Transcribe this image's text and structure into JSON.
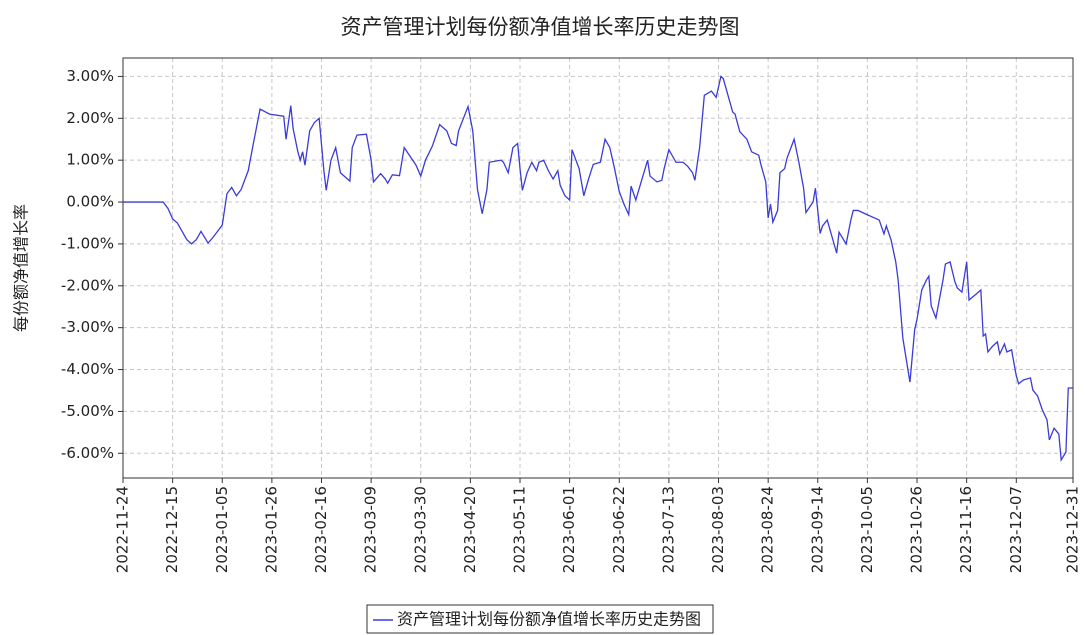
{
  "chart_data": {
    "type": "line",
    "title": "资产管理计划每份额净值增长率历史走势图",
    "y_label": "每份额净值增长率",
    "xlim": [
      "2022-11-24",
      "2023-12-31"
    ],
    "xticks": [
      "2022-11-24",
      "2022-12-15",
      "2023-01-05",
      "2023-01-26",
      "2023-02-16",
      "2023-03-09",
      "2023-03-30",
      "2023-04-20",
      "2023-05-11",
      "2023-06-01",
      "2023-06-22",
      "2023-07-13",
      "2023-08-03",
      "2023-08-24",
      "2023-09-14",
      "2023-10-05",
      "2023-10-26",
      "2023-11-16",
      "2023-12-07",
      "2023-12-31"
    ],
    "ylim": [
      -6.59,
      3.44
    ],
    "yticks": [
      {
        "value": 3,
        "label": "3.00%"
      },
      {
        "value": 2,
        "label": "2.00%"
      },
      {
        "value": 1,
        "label": "1.00%"
      },
      {
        "value": 0,
        "label": "0.00%"
      },
      {
        "value": -1,
        "label": "-1.00%"
      },
      {
        "value": -2,
        "label": "-2.00%"
      },
      {
        "value": -3,
        "label": "-3.00%"
      },
      {
        "value": -4,
        "label": "-4.00%"
      },
      {
        "value": -5,
        "label": "-5.00%"
      },
      {
        "value": -6,
        "label": "-6.00%"
      }
    ],
    "grid": true,
    "legend": "bottom",
    "x": [
      "2022-11-24",
      "2022-12-11",
      "2022-12-13",
      "2022-12-15",
      "2022-12-17",
      "2022-12-19",
      "2022-12-21",
      "2022-12-23",
      "2022-12-25",
      "2022-12-27",
      "2022-12-30",
      "2023-01-01",
      "2023-01-03",
      "2023-01-05",
      "2023-01-07",
      "2023-01-09",
      "2023-01-11",
      "2023-01-13",
      "2023-01-16",
      "2023-01-18",
      "2023-01-21",
      "2023-01-25",
      "2023-01-31",
      "2023-02-01",
      "2023-02-03",
      "2023-02-04",
      "2023-02-06",
      "2023-02-07",
      "2023-02-08",
      "2023-02-09",
      "2023-02-11",
      "2023-02-13",
      "2023-02-15",
      "2023-02-17",
      "2023-02-18",
      "2023-02-20",
      "2023-02-22",
      "2023-02-24",
      "2023-02-28",
      "2023-03-01",
      "2023-03-03",
      "2023-03-07",
      "2023-03-09",
      "2023-03-10",
      "2023-03-13",
      "2023-03-15",
      "2023-03-16",
      "2023-03-18",
      "2023-03-21",
      "2023-03-23",
      "2023-03-26",
      "2023-03-28",
      "2023-03-30",
      "2023-04-01",
      "2023-04-04",
      "2023-04-07",
      "2023-04-10",
      "2023-04-12",
      "2023-04-14",
      "2023-04-15",
      "2023-04-19",
      "2023-04-21",
      "2023-04-23",
      "2023-04-25",
      "2023-04-27",
      "2023-04-28",
      "2023-05-03",
      "2023-05-04",
      "2023-05-06",
      "2023-05-08",
      "2023-05-10",
      "2023-05-11",
      "2023-05-12",
      "2023-05-14",
      "2023-05-16",
      "2023-05-18",
      "2023-05-19",
      "2023-05-21",
      "2023-05-23",
      "2023-05-25",
      "2023-05-27",
      "2023-05-28",
      "2023-05-30",
      "2023-06-01",
      "2023-06-02",
      "2023-06-05",
      "2023-06-07",
      "2023-06-09",
      "2023-06-11",
      "2023-06-14",
      "2023-06-16",
      "2023-06-18",
      "2023-06-20",
      "2023-06-22",
      "2023-06-24",
      "2023-06-26",
      "2023-06-27",
      "2023-06-29",
      "2023-07-02",
      "2023-07-04",
      "2023-07-05",
      "2023-07-08",
      "2023-07-10",
      "2023-07-11",
      "2023-07-13",
      "2023-07-16",
      "2023-07-19",
      "2023-07-21",
      "2023-07-23",
      "2023-07-24",
      "2023-07-26",
      "2023-07-28",
      "2023-07-31",
      "2023-08-02",
      "2023-08-04",
      "2023-08-05",
      "2023-08-09",
      "2023-08-10",
      "2023-08-12",
      "2023-08-15",
      "2023-08-17",
      "2023-08-20",
      "2023-08-21",
      "2023-08-23",
      "2023-08-24",
      "2023-08-25",
      "2023-08-26",
      "2023-08-28",
      "2023-08-29",
      "2023-08-31",
      "2023-09-01",
      "2023-09-04",
      "2023-09-06",
      "2023-09-08",
      "2023-09-09",
      "2023-09-12",
      "2023-09-13",
      "2023-09-15",
      "2023-09-16",
      "2023-09-18",
      "2023-09-22",
      "2023-09-23",
      "2023-09-26",
      "2023-09-28",
      "2023-09-29",
      "2023-10-01",
      "2023-10-04",
      "2023-10-08",
      "2023-10-10",
      "2023-10-12",
      "2023-10-13",
      "2023-10-15",
      "2023-10-17",
      "2023-10-18",
      "2023-10-20",
      "2023-10-23",
      "2023-10-25",
      "2023-10-26",
      "2023-10-28",
      "2023-10-30",
      "2023-10-31",
      "2023-11-01",
      "2023-11-03",
      "2023-11-06",
      "2023-11-07",
      "2023-11-09",
      "2023-11-11",
      "2023-11-12",
      "2023-11-14",
      "2023-11-16",
      "2023-11-17",
      "2023-11-20",
      "2023-11-22",
      "2023-11-23",
      "2023-11-24",
      "2023-11-25",
      "2023-11-27",
      "2023-11-29",
      "2023-11-30",
      "2023-12-02",
      "2023-12-03",
      "2023-12-05",
      "2023-12-07",
      "2023-12-08",
      "2023-12-10",
      "2023-12-13",
      "2023-12-14",
      "2023-12-16",
      "2023-12-18",
      "2023-12-20",
      "2023-12-21",
      "2023-12-23",
      "2023-12-25",
      "2023-12-26",
      "2023-12-28",
      "2023-12-29",
      "2023-12-31"
    ],
    "series": [
      {
        "name": "资产管理计划每份额净值增长率历史走势图",
        "color": "#3b3bd9",
        "values": [
          0,
          0,
          -0.15,
          -0.4,
          -0.5,
          -0.7,
          -0.9,
          -1.0,
          -0.9,
          -0.7,
          -0.98,
          -0.85,
          -0.7,
          -0.55,
          0.2,
          0.35,
          0.15,
          0.3,
          0.75,
          1.35,
          2.22,
          2.1,
          2.05,
          1.5,
          2.3,
          1.75,
          1.2,
          1.0,
          1.2,
          0.88,
          1.7,
          1.9,
          2.0,
          0.75,
          0.28,
          1.0,
          1.3,
          0.7,
          0.5,
          1.3,
          1.6,
          1.62,
          1.0,
          0.48,
          0.68,
          0.55,
          0.45,
          0.65,
          0.63,
          1.3,
          1.05,
          0.88,
          0.62,
          1.0,
          1.35,
          1.85,
          1.7,
          1.4,
          1.35,
          1.7,
          2.28,
          1.7,
          0.3,
          -0.28,
          0.3,
          0.95,
          1.0,
          0.95,
          0.7,
          1.3,
          1.4,
          0.8,
          0.28,
          0.7,
          0.95,
          0.75,
          0.95,
          1.0,
          0.75,
          0.55,
          0.75,
          0.4,
          0.15,
          0.05,
          1.25,
          0.8,
          0.15,
          0.55,
          0.9,
          0.95,
          1.5,
          1.3,
          0.8,
          0.25,
          -0.05,
          -0.3,
          0.38,
          0.05,
          0.62,
          1.0,
          0.62,
          0.48,
          0.52,
          0.8,
          1.25,
          0.95,
          0.95,
          0.85,
          0.7,
          0.52,
          1.3,
          2.55,
          2.65,
          2.5,
          3.0,
          2.95,
          2.15,
          2.1,
          1.68,
          1.5,
          1.2,
          1.12,
          0.88,
          0.48,
          -0.38,
          -0.05,
          -0.48,
          -0.2,
          0.7,
          0.8,
          1.05,
          1.5,
          0.95,
          0.33,
          -0.25,
          0,
          0.33,
          -0.75,
          -0.57,
          -0.43,
          -1.22,
          -0.72,
          -1.0,
          -0.43,
          -0.2,
          -0.2,
          -0.28,
          -0.38,
          -0.43,
          -0.76,
          -0.57,
          -0.9,
          -1.43,
          -1.86,
          -3.25,
          -4.3,
          -3.05,
          -2.8,
          -2.1,
          -1.86,
          -1.77,
          -2.48,
          -2.77,
          -1.86,
          -1.48,
          -1.43,
          -1.9,
          -2.05,
          -2.15,
          -1.43,
          -2.34,
          -2.2,
          -2.1,
          -3.2,
          -3.15,
          -3.58,
          -3.44,
          -3.34,
          -3.63,
          -3.39,
          -3.58,
          -3.53,
          -4.15,
          -4.34,
          -4.25,
          -4.2,
          -4.49,
          -4.63,
          -4.96,
          -5.2,
          -5.68,
          -5.4,
          -5.54,
          -6.16,
          -5.97,
          -4.44,
          -4.44
        ]
      }
    ]
  }
}
